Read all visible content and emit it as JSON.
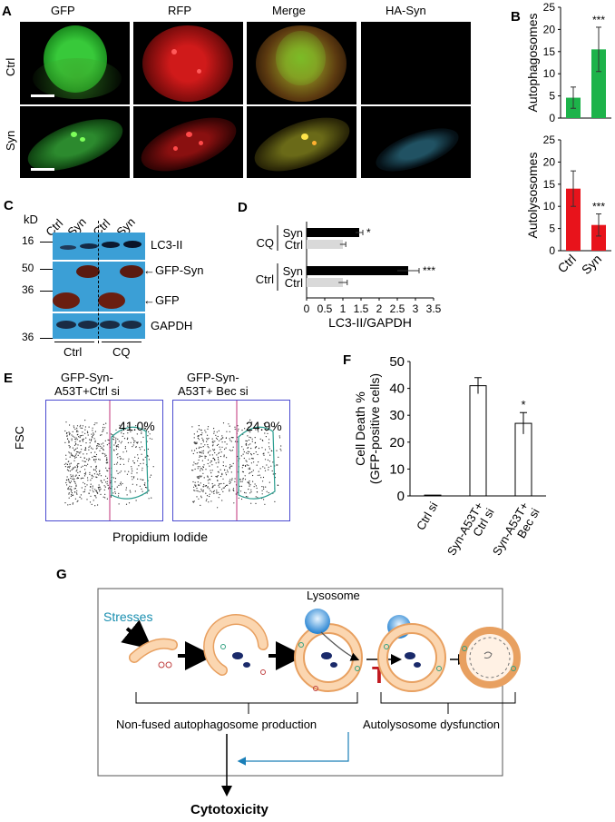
{
  "panels": {
    "A": "A",
    "B": "B",
    "C": "C",
    "D": "D",
    "E": "E",
    "F": "F",
    "G": "G"
  },
  "panel_a": {
    "columns": [
      "GFP",
      "RFP",
      "Merge",
      "HA-Syn"
    ],
    "rows": [
      "Ctrl",
      "Syn"
    ]
  },
  "panel_c": {
    "kd": "kD",
    "lanes": [
      "Ctrl",
      "Syn",
      "Ctrl",
      "Syn"
    ],
    "markers": [
      "16",
      "50",
      "36",
      "36"
    ],
    "bands": [
      "LC3-II",
      "GFP-Syn",
      "GFP",
      "GAPDH"
    ],
    "groups": [
      "Ctrl",
      "CQ"
    ]
  },
  "panel_e": {
    "titles": [
      "GFP-Syn-\nA53T+Ctrl si",
      "GFP-Syn-\nA53T+ Bec si"
    ],
    "percents": [
      "41.0%",
      "24.9%"
    ],
    "ylabel": "FSC",
    "xlabel": "Propidium Iodide"
  },
  "panel_g": {
    "lysosome": "Lysosome",
    "stresses": "Stresses",
    "bracket1": "Non-fused autophagosome production",
    "bracket2": "Autolysosome dysfunction",
    "outcome": "Cytotoxicity",
    "block": "T"
  },
  "colors": {
    "green": "#1db34a",
    "red": "#e8131b",
    "black": "#000000",
    "gray": "#d9d9d9",
    "stress_label": "#1a8fb0",
    "block_red": "#c0181f"
  },
  "chart_data": [
    {
      "type": "bar",
      "id": "B-top",
      "categories": [
        "Ctrl",
        "Syn"
      ],
      "values": [
        4.6,
        15.5
      ],
      "errors": [
        2.4,
        5.0
      ],
      "ylabel": "Autophagosomes",
      "ylim": [
        0,
        25
      ],
      "yticks": [
        "0",
        "5",
        "10",
        "15",
        "20",
        "25"
      ],
      "annotations": [
        "",
        "***"
      ],
      "color": "#1db34a"
    },
    {
      "type": "bar",
      "id": "B-bottom",
      "categories": [
        "Ctrl",
        "Syn"
      ],
      "values": [
        14.0,
        5.8
      ],
      "errors": [
        4.0,
        2.5
      ],
      "ylabel": "Autolysosomes",
      "ylim": [
        0,
        25
      ],
      "yticks": [
        "0",
        "5",
        "10",
        "15",
        "20",
        "25"
      ],
      "annotations": [
        "",
        "***"
      ],
      "color": "#e8131b"
    },
    {
      "type": "bar",
      "id": "D",
      "orientation": "horizontal",
      "groups": [
        "CQ",
        "Ctrl"
      ],
      "categories": [
        "Syn",
        "Ctrl",
        "Syn",
        "Ctrl"
      ],
      "values": [
        1.45,
        1.0,
        2.8,
        1.0
      ],
      "errors": [
        0.1,
        0.08,
        0.3,
        0.12
      ],
      "annotations": [
        "*",
        "",
        "***",
        ""
      ],
      "xlabel": "LC3-II/GAPDH",
      "xlim": [
        0,
        3.5
      ],
      "xticks": [
        "0",
        "0.5",
        "1",
        "1.5",
        "2",
        "2.5",
        "3",
        "3.5"
      ]
    },
    {
      "type": "bar",
      "id": "F",
      "categories": [
        "Ctrl si",
        "Syn-A53T+\nCtrl si",
        "Syn-A53T+\nBec si"
      ],
      "values": [
        0.3,
        41,
        27
      ],
      "errors": [
        0,
        3,
        4
      ],
      "annotations": [
        "",
        "",
        "*"
      ],
      "ylabel": "Cell Death %\n(GFP-positive cells)",
      "ylim": [
        0,
        50
      ],
      "yticks": [
        "0",
        "10",
        "20",
        "30",
        "40",
        "50"
      ]
    }
  ]
}
